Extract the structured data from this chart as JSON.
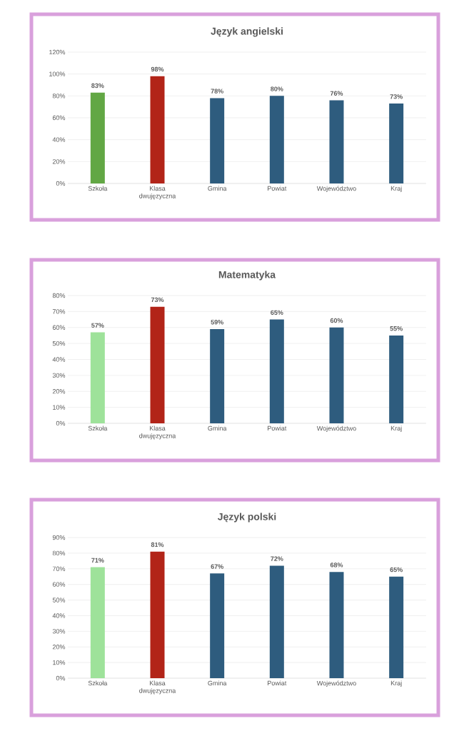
{
  "chart_data": [
    {
      "type": "bar",
      "title": "Język angielski",
      "categories": [
        "Szkoła",
        "Klasa dwujęzyczna",
        "Gmina",
        "Powiat",
        "Województwo",
        "Kraj"
      ],
      "values": [
        83,
        98,
        78,
        80,
        76,
        73
      ],
      "colors": [
        "#62a744",
        "#b22418",
        "#2e5c7e",
        "#2e5c7e",
        "#2e5c7e",
        "#2e5c7e"
      ],
      "value_labels": [
        "83%",
        "98%",
        "78%",
        "80%",
        "76%",
        "73%"
      ],
      "ylim": [
        0,
        120
      ],
      "yticks": [
        {
          "value": 0,
          "label": "0%"
        },
        {
          "value": 20,
          "label": "20%"
        },
        {
          "value": 40,
          "label": "40%"
        },
        {
          "value": 60,
          "label": "60%"
        },
        {
          "value": 80,
          "label": "80%"
        },
        {
          "value": 100,
          "label": "100%"
        },
        {
          "value": 120,
          "label": "120%"
        }
      ],
      "grid": "y"
    },
    {
      "type": "bar",
      "title": "Matematyka",
      "categories": [
        "Szkoła",
        "Klasa dwujęzyczna",
        "Gmina",
        "Powiat",
        "Województwo",
        "Kraj"
      ],
      "values": [
        57,
        73,
        59,
        65,
        60,
        55
      ],
      "colors": [
        "#9ee29a",
        "#b22418",
        "#2e5c7e",
        "#2e5c7e",
        "#2e5c7e",
        "#2e5c7e"
      ],
      "value_labels": [
        "57%",
        "73%",
        "59%",
        "65%",
        "60%",
        "55%"
      ],
      "ylim": [
        0,
        80
      ],
      "yticks": [
        {
          "value": 0,
          "label": "0%"
        },
        {
          "value": 10,
          "label": "10%"
        },
        {
          "value": 20,
          "label": "20%"
        },
        {
          "value": 30,
          "label": "30%"
        },
        {
          "value": 40,
          "label": "40%"
        },
        {
          "value": 50,
          "label": "50%"
        },
        {
          "value": 60,
          "label": "60%"
        },
        {
          "value": 70,
          "label": "70%"
        },
        {
          "value": 80,
          "label": "80%"
        }
      ],
      "grid": "y"
    },
    {
      "type": "bar",
      "title": "Język polski",
      "categories": [
        "Szkoła",
        "Klasa dwujęzyczna",
        "Gmina",
        "Powiat",
        "Województwo",
        "Kraj"
      ],
      "values": [
        71,
        81,
        67,
        72,
        68,
        65
      ],
      "colors": [
        "#9ee29a",
        "#b22418",
        "#2e5c7e",
        "#2e5c7e",
        "#2e5c7e",
        "#2e5c7e"
      ],
      "value_labels": [
        "71%",
        "81%",
        "67%",
        "72%",
        "68%",
        "65%"
      ],
      "ylim": [
        0,
        90
      ],
      "yticks": [
        {
          "value": 0,
          "label": "0%"
        },
        {
          "value": 10,
          "label": "10%"
        },
        {
          "value": 20,
          "label": "20%"
        },
        {
          "value": 30,
          "label": "30%"
        },
        {
          "value": 40,
          "label": "40%"
        },
        {
          "value": 50,
          "label": "50%"
        },
        {
          "value": 60,
          "label": "60%"
        },
        {
          "value": 70,
          "label": "70%"
        },
        {
          "value": 80,
          "label": "80%"
        },
        {
          "value": 90,
          "label": "90%"
        }
      ],
      "grid": "y"
    }
  ]
}
